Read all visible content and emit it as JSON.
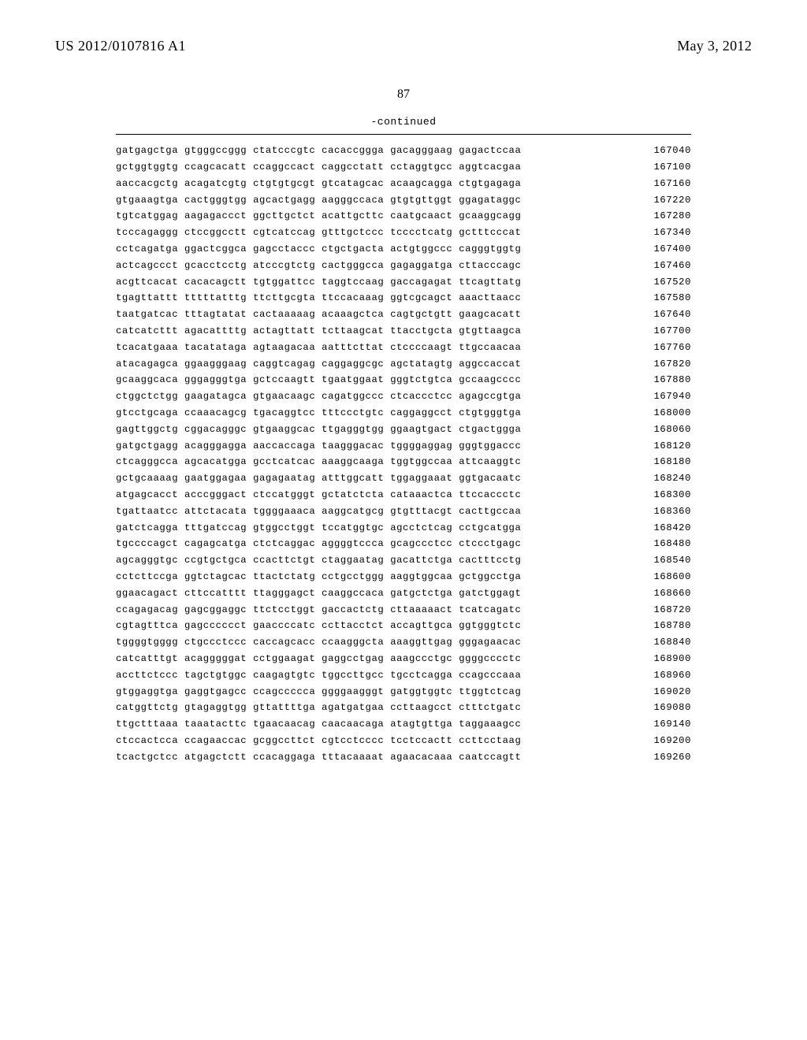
{
  "header": {
    "pub_number": "US 2012/0107816 A1",
    "pub_date": "May 3, 2012",
    "page_number": "87",
    "continued_label": "-continued"
  },
  "sequence": {
    "font_family": "Courier New",
    "font_size_pt": 9,
    "row_color": "#000000",
    "background_color": "#ffffff",
    "rows": [
      {
        "bases": "gatgagctga gtgggccggg ctatcccgtc cacaccggga gacagggaag gagactccaa",
        "pos": "167040"
      },
      {
        "bases": "gctggtggtg ccagcacatt ccaggccact caggcctatt cctaggtgcc aggtcacgaa",
        "pos": "167100"
      },
      {
        "bases": "aaccacgctg acagatcgtg ctgtgtgcgt gtcatagcac acaagcagga ctgtgagaga",
        "pos": "167160"
      },
      {
        "bases": "gtgaaagtga cactgggtgg agcactgagg aagggccaca gtgtgttggt ggagataggc",
        "pos": "167220"
      },
      {
        "bases": "tgtcatggag aagagaccct ggcttgctct acattgcttc caatgcaact gcaaggcagg",
        "pos": "167280"
      },
      {
        "bases": "tcccagaggg ctccggcctt cgtcatccag gtttgctccc tcccctcatg gctttcccat",
        "pos": "167340"
      },
      {
        "bases": "cctcagatga ggactcggca gagcctaccc ctgctgacta actgtggccc cagggtggtg",
        "pos": "167400"
      },
      {
        "bases": "actcagccct gcacctcctg atcccgtctg cactgggcca gagaggatga cttacccagc",
        "pos": "167460"
      },
      {
        "bases": "acgttcacat cacacagctt tgtggattcc taggtccaag gaccagagat ttcagttatg",
        "pos": "167520"
      },
      {
        "bases": "tgagttattt tttttatttg ttcttgcgta ttccacaaag ggtcgcagct aaacttaacc",
        "pos": "167580"
      },
      {
        "bases": "taatgatcac tttagtatat cactaaaaag acaaagctca cagtgctgtt gaagcacatt",
        "pos": "167640"
      },
      {
        "bases": "catcatcttt agacattttg actagttatt tcttaagcat ttacctgcta gtgttaagca",
        "pos": "167700"
      },
      {
        "bases": "tcacatgaaa tacatataga agtaagacaa aatttcttat ctccccaagt ttgccaacaa",
        "pos": "167760"
      },
      {
        "bases": "atacagagca ggaagggaag caggtcagag caggaggcgc agctatagtg aggccaccat",
        "pos": "167820"
      },
      {
        "bases": "gcaaggcaca gggagggtga gctccaagtt tgaatggaat gggtctgtca gccaagcccc",
        "pos": "167880"
      },
      {
        "bases": "ctggctctgg gaagatagca gtgaacaagc cagatggccc ctcaccctcc agagccgtga",
        "pos": "167940"
      },
      {
        "bases": "gtcctgcaga ccaaacagcg tgacaggtcc tttccctgtc caggaggcct ctgtgggtga",
        "pos": "168000"
      },
      {
        "bases": "gagttggctg cggacagggc gtgaaggcac ttgagggtgg ggaagtgact ctgactggga",
        "pos": "168060"
      },
      {
        "bases": "gatgctgagg acagggagga aaccaccaga taagggacac tggggaggag gggtggaccc",
        "pos": "168120"
      },
      {
        "bases": "ctcagggcca agcacatgga gcctcatcac aaaggcaaga tggtggccaa attcaaggtc",
        "pos": "168180"
      },
      {
        "bases": "gctgcaaaag gaatggagaa gagagaatag atttggcatt tggaggaaat ggtgacaatc",
        "pos": "168240"
      },
      {
        "bases": "atgagcacct acccgggact ctccatgggt gctatctcta cataaactca ttccaccctc",
        "pos": "168300"
      },
      {
        "bases": "tgattaatcc attctacata tggggaaaca aaggcatgcg gtgtttacgt cacttgccaa",
        "pos": "168360"
      },
      {
        "bases": "gatctcagga tttgatccag gtggcctggt tccatggtgc agcctctcag cctgcatgga",
        "pos": "168420"
      },
      {
        "bases": "tgccccagct cagagcatga ctctcaggac aggggtccca gcagccctcc ctccctgagc",
        "pos": "168480"
      },
      {
        "bases": "agcagggtgc ccgtgctgca ccacttctgt ctaggaatag gacattctga cactttcctg",
        "pos": "168540"
      },
      {
        "bases": "cctcttccga ggtctagcac ttactctatg cctgcctggg aaggtggcaa gctggcctga",
        "pos": "168600"
      },
      {
        "bases": "ggaacagact cttccatttt ttagggagct caaggccaca gatgctctga gatctggagt",
        "pos": "168660"
      },
      {
        "bases": "ccagagacag gagcggaggc ttctcctggt gaccactctg cttaaaaact tcatcagatc",
        "pos": "168720"
      },
      {
        "bases": "cgtagtttca gagcccccct gaaccccatc ccttacctct accagttgca ggtgggtctc",
        "pos": "168780"
      },
      {
        "bases": "tggggtgggg ctgccctccc caccagcacc ccaagggcta aaaggttgag gggagaacac",
        "pos": "168840"
      },
      {
        "bases": "catcatttgt acagggggat cctggaagat gaggcctgag aaagccctgc ggggcccctc",
        "pos": "168900"
      },
      {
        "bases": "accttctccc tagctgtggc caagagtgtc tggccttgcc tgcctcagga ccagcccaaa",
        "pos": "168960"
      },
      {
        "bases": "gtggaggtga gaggtgagcc ccagccccca ggggaagggt gatggtggtc ttggtctcag",
        "pos": "169020"
      },
      {
        "bases": "catggttctg gtagaggtgg gttattttga agatgatgaa ccttaagcct ctttctgatc",
        "pos": "169080"
      },
      {
        "bases": "ttgctttaaa taaatacttc tgaacaacag caacaacaga atagtgttga taggaaagcc",
        "pos": "169140"
      },
      {
        "bases": "ctccactcca ccagaaccac gcggccttct cgtcctcccc tcctccactt ccttcctaag",
        "pos": "169200"
      },
      {
        "bases": "tcactgctcc atgagctctt ccacaggaga tttacaaaat agaacacaaa caatccagtt",
        "pos": "169260"
      }
    ]
  }
}
